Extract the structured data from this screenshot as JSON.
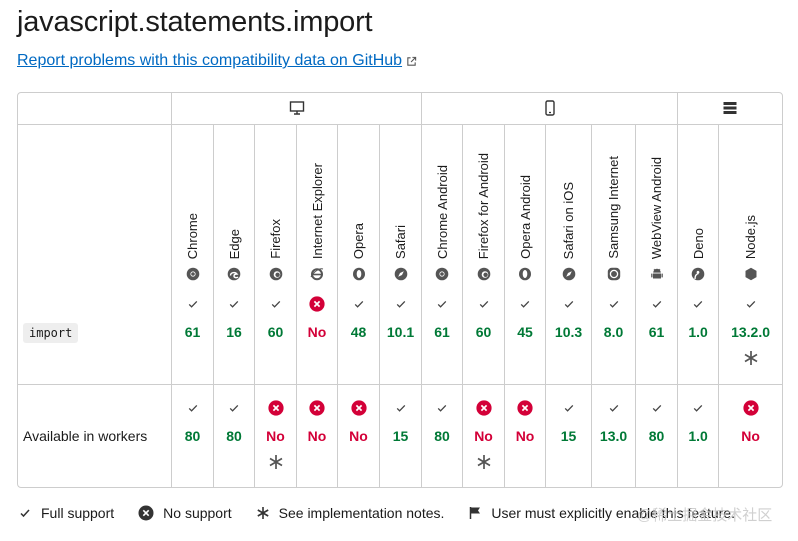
{
  "page": {
    "title": "javascript.statements.import",
    "report_link": "Report problems with this compatibility data on GitHub"
  },
  "platforms": [
    {
      "name": "desktop-icon"
    },
    {
      "name": "mobile-icon"
    },
    {
      "name": "server-icon"
    }
  ],
  "browsers": [
    {
      "label": "Chrome",
      "icon": "chrome-icon"
    },
    {
      "label": "Edge",
      "icon": "edge-icon"
    },
    {
      "label": "Firefox",
      "icon": "firefox-icon"
    },
    {
      "label": "Internet Explorer",
      "icon": "ie-icon"
    },
    {
      "label": "Opera",
      "icon": "opera-icon"
    },
    {
      "label": "Safari",
      "icon": "safari-icon"
    },
    {
      "label": "Chrome Android",
      "icon": "chrome-icon"
    },
    {
      "label": "Firefox for Android",
      "icon": "firefox-icon"
    },
    {
      "label": "Opera Android",
      "icon": "opera-icon"
    },
    {
      "label": "Safari on iOS",
      "icon": "safari-icon"
    },
    {
      "label": "Samsung Internet",
      "icon": "samsung-icon"
    },
    {
      "label": "WebView Android",
      "icon": "android-icon"
    },
    {
      "label": "Deno",
      "icon": "deno-icon"
    },
    {
      "label": "Node.js",
      "icon": "nodejs-icon"
    }
  ],
  "rows": [
    {
      "feature": "import",
      "is_code": true,
      "cells": [
        {
          "support": "yes",
          "version": "61"
        },
        {
          "support": "yes",
          "version": "16"
        },
        {
          "support": "yes",
          "version": "60"
        },
        {
          "support": "no",
          "version": "No"
        },
        {
          "support": "yes",
          "version": "48"
        },
        {
          "support": "yes",
          "version": "10.1"
        },
        {
          "support": "yes",
          "version": "61"
        },
        {
          "support": "yes",
          "version": "60"
        },
        {
          "support": "yes",
          "version": "45"
        },
        {
          "support": "yes",
          "version": "10.3"
        },
        {
          "support": "yes",
          "version": "8.0"
        },
        {
          "support": "yes",
          "version": "61"
        },
        {
          "support": "yes",
          "version": "1.0"
        },
        {
          "support": "yes",
          "version": "13.2.0",
          "note": true
        }
      ]
    },
    {
      "feature": "Available in workers",
      "is_code": false,
      "cells": [
        {
          "support": "yes",
          "version": "80"
        },
        {
          "support": "yes",
          "version": "80"
        },
        {
          "support": "no",
          "version": "No",
          "note": true
        },
        {
          "support": "no",
          "version": "No"
        },
        {
          "support": "no",
          "version": "No"
        },
        {
          "support": "yes",
          "version": "15"
        },
        {
          "support": "yes",
          "version": "80"
        },
        {
          "support": "no",
          "version": "No",
          "note": true
        },
        {
          "support": "no",
          "version": "No"
        },
        {
          "support": "yes",
          "version": "15"
        },
        {
          "support": "yes",
          "version": "13.0"
        },
        {
          "support": "yes",
          "version": "80"
        },
        {
          "support": "yes",
          "version": "1.0"
        },
        {
          "support": "no",
          "version": "No"
        }
      ]
    }
  ],
  "legend": {
    "full_support": "Full support",
    "no_support": "No support",
    "impl_notes": "See implementation notes.",
    "user_enable": "User must explicitly enable this feature."
  },
  "watermark": "@稀土掘金技术社区",
  "colors": {
    "yes": "#007936",
    "no": "#d30038",
    "link": "#0069c2",
    "border": "#cdcdcd"
  }
}
